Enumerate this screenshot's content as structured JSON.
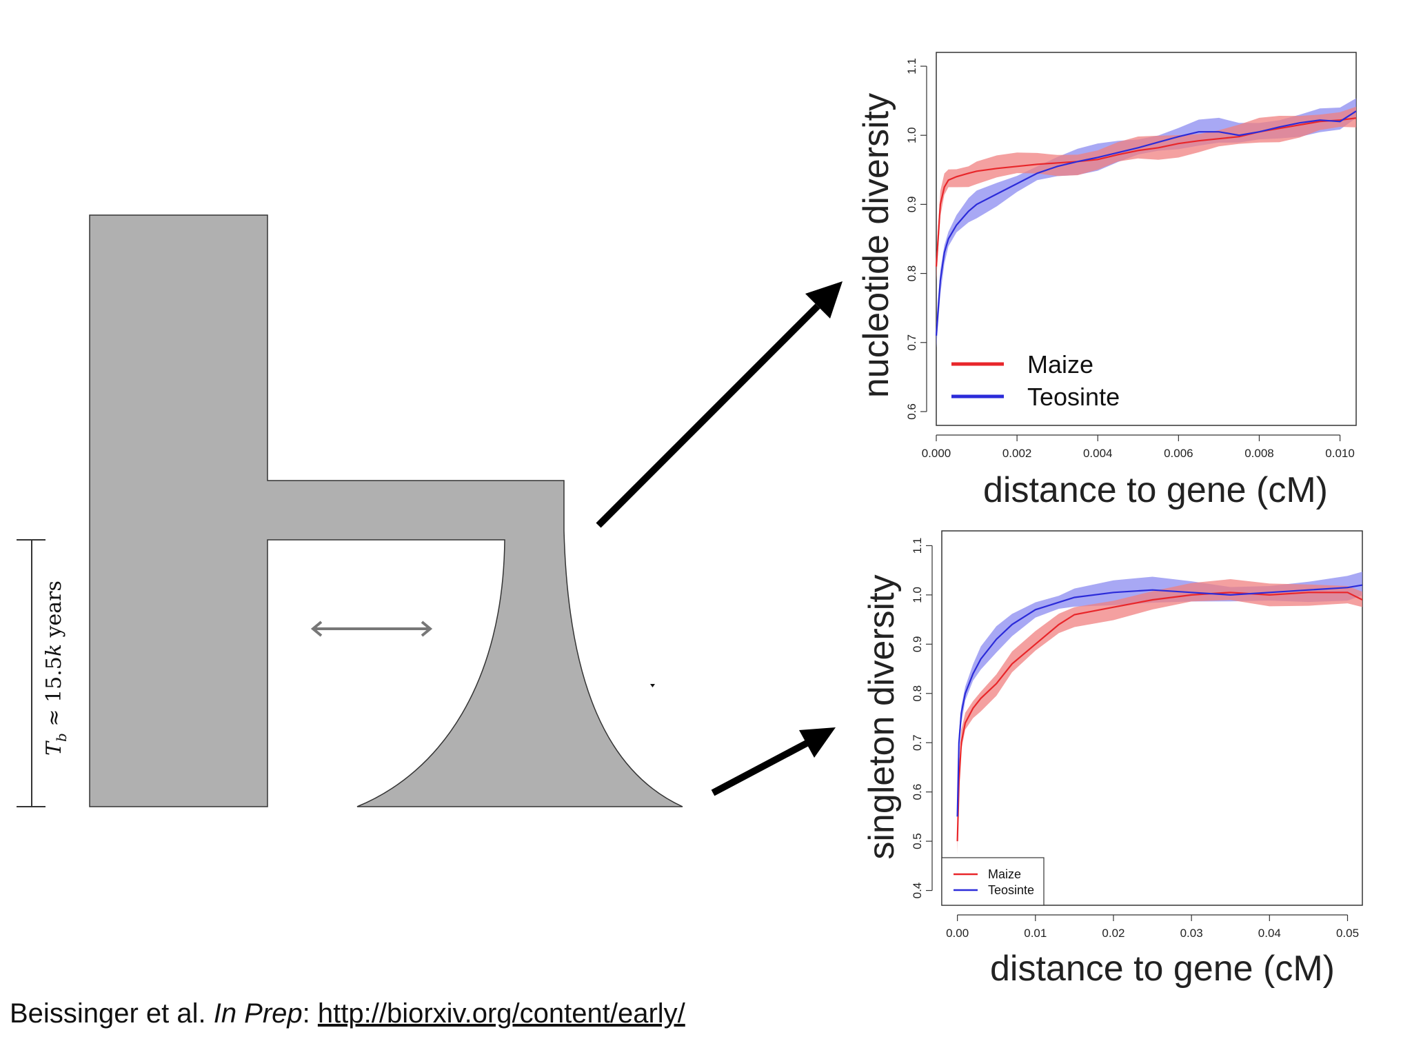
{
  "colors": {
    "maize": "#e8262a",
    "teosinte": "#2b2bd9",
    "maize_band": "#f08080",
    "teosinte_band": "#8b8bf0",
    "population_fill": "#b0b0b0",
    "arrow": "#000000",
    "migration_arrow": "#777777"
  },
  "diagram": {
    "tb_label": "T_b ≈ 15.5k years",
    "tb_symbol": "T",
    "tb_subscript": "b",
    "tb_rest": " ≈ 15.5",
    "tb_k": "k",
    "tb_unit": " years"
  },
  "citation": {
    "authors": "Beissinger et al. ",
    "status": "In Prep",
    "colon": ": ",
    "url": "http://biorxiv.org/content/early/"
  },
  "chart_data": [
    {
      "type": "line",
      "xlabel": "distance to gene (cM)",
      "ylabel": "nucleotide diversity",
      "xlim": [
        0.0,
        0.0104
      ],
      "ylim": [
        0.58,
        1.12
      ],
      "xticks": [
        "0.000",
        "0.002",
        "0.004",
        "0.006",
        "0.008",
        "0.010"
      ],
      "yticks": [
        "0.6",
        "0.7",
        "0.8",
        "0.9",
        "1.0",
        "1.1"
      ],
      "legend": {
        "position": "bottom-left",
        "size": "large"
      },
      "series": [
        {
          "name": "Maize",
          "color": "#e8262a",
          "x": [
            0.0,
            0.0001,
            0.0002,
            0.0003,
            0.0005,
            0.0008,
            0.001,
            0.0015,
            0.002,
            0.0025,
            0.003,
            0.0035,
            0.004,
            0.0045,
            0.005,
            0.0055,
            0.006,
            0.0065,
            0.007,
            0.0075,
            0.008,
            0.0085,
            0.009,
            0.0095,
            0.01,
            0.0104
          ],
          "y": [
            0.81,
            0.9,
            0.925,
            0.935,
            0.94,
            0.945,
            0.948,
            0.952,
            0.955,
            0.958,
            0.96,
            0.962,
            0.965,
            0.972,
            0.978,
            0.982,
            0.988,
            0.992,
            0.995,
            0.998,
            1.005,
            1.01,
            1.015,
            1.02,
            1.022,
            1.025
          ],
          "band": 0.015
        },
        {
          "name": "Teosinte",
          "color": "#2b2bd9",
          "x": [
            0.0,
            0.0001,
            0.0002,
            0.0003,
            0.0005,
            0.0008,
            0.001,
            0.0015,
            0.002,
            0.0025,
            0.003,
            0.0035,
            0.004,
            0.0045,
            0.005,
            0.0055,
            0.006,
            0.0065,
            0.007,
            0.0075,
            0.008,
            0.0085,
            0.009,
            0.0095,
            0.01,
            0.0104
          ],
          "y": [
            0.71,
            0.79,
            0.83,
            0.85,
            0.87,
            0.89,
            0.9,
            0.915,
            0.93,
            0.945,
            0.955,
            0.962,
            0.968,
            0.975,
            0.982,
            0.99,
            0.998,
            1.005,
            1.005,
            1.0,
            1.005,
            1.012,
            1.018,
            1.022,
            1.02,
            1.035
          ],
          "band": 0.015
        }
      ]
    },
    {
      "type": "line",
      "xlabel": "distance to gene (cM)",
      "ylabel": "singleton diversity",
      "xlim": [
        -0.002,
        0.0519
      ],
      "ylim": [
        0.37,
        1.13
      ],
      "xticks": [
        "0.00",
        "0.01",
        "0.02",
        "0.03",
        "0.04",
        "0.05"
      ],
      "yticks": [
        "0.4",
        "0.5",
        "0.6",
        "0.7",
        "0.8",
        "0.9",
        "1.0",
        "1.1"
      ],
      "legend": {
        "position": "bottom-left",
        "size": "small"
      },
      "series": [
        {
          "name": "Maize",
          "color": "#e8262a",
          "x": [
            0.0,
            0.0002,
            0.0005,
            0.001,
            0.002,
            0.003,
            0.005,
            0.007,
            0.01,
            0.013,
            0.015,
            0.02,
            0.025,
            0.03,
            0.035,
            0.04,
            0.045,
            0.05,
            0.0519
          ],
          "y": [
            0.5,
            0.62,
            0.7,
            0.74,
            0.77,
            0.79,
            0.82,
            0.86,
            0.9,
            0.94,
            0.96,
            0.975,
            0.99,
            1.0,
            1.005,
            1.0,
            1.005,
            1.005,
            0.99
          ],
          "band": 0.02
        },
        {
          "name": "Teosinte",
          "color": "#2b2bd9",
          "x": [
            0.0,
            0.0002,
            0.0005,
            0.001,
            0.002,
            0.003,
            0.005,
            0.007,
            0.01,
            0.013,
            0.015,
            0.02,
            0.025,
            0.03,
            0.035,
            0.04,
            0.045,
            0.05,
            0.0519
          ],
          "y": [
            0.55,
            0.7,
            0.76,
            0.8,
            0.84,
            0.87,
            0.91,
            0.94,
            0.97,
            0.985,
            0.995,
            1.005,
            1.01,
            1.005,
            1.0,
            1.005,
            1.01,
            1.015,
            1.02
          ],
          "band": 0.02
        }
      ]
    }
  ]
}
